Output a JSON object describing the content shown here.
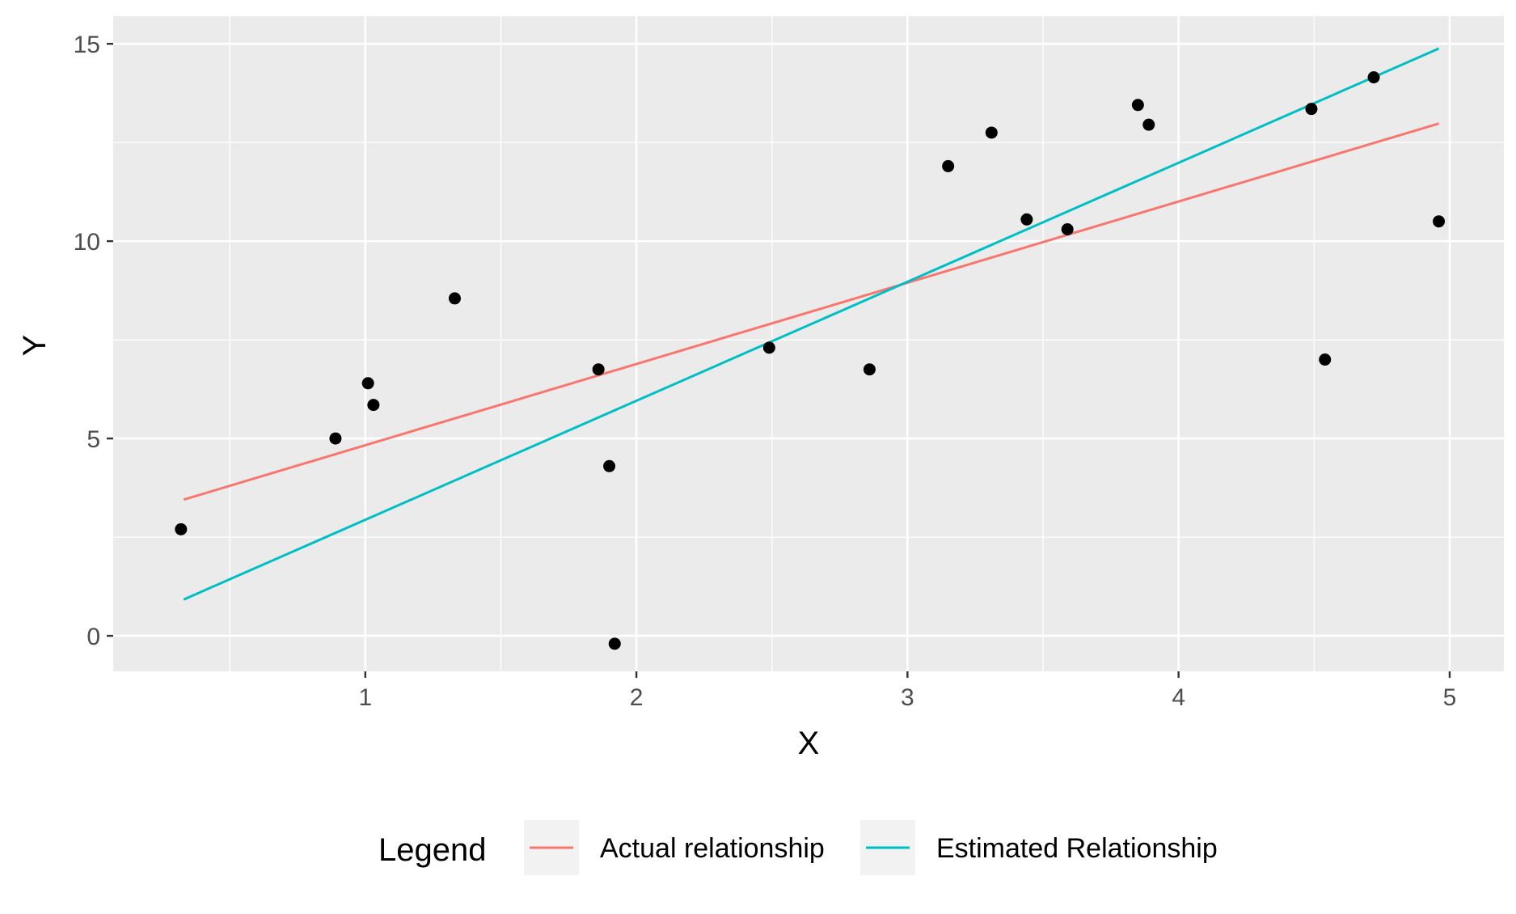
{
  "chart_data": {
    "type": "scatter",
    "title": "",
    "xlabel": "X",
    "ylabel": "Y",
    "xlim": [
      0.07,
      5.2
    ],
    "ylim": [
      -0.9,
      15.7
    ],
    "x_ticks": [
      1,
      2,
      3,
      4,
      5
    ],
    "y_ticks": [
      0,
      5,
      10,
      15
    ],
    "x_tick_labels": [
      "1",
      "2",
      "3",
      "4",
      "5"
    ],
    "y_tick_labels": [
      "0",
      "5",
      "10",
      "15"
    ],
    "grid": true,
    "background_color": "#EBEBEB",
    "grid_color": "#FFFFFF",
    "points": {
      "color": "#000000",
      "x": [
        0.32,
        0.89,
        1.01,
        1.03,
        1.33,
        1.86,
        1.9,
        1.92,
        2.49,
        2.86,
        3.15,
        3.31,
        3.44,
        3.59,
        3.85,
        3.89,
        4.49,
        4.54,
        4.72,
        4.96
      ],
      "y": [
        2.7,
        5.0,
        6.4,
        5.85,
        8.55,
        6.75,
        4.3,
        -0.2,
        7.3,
        6.75,
        11.9,
        12.75,
        10.55,
        10.3,
        13.45,
        12.95,
        13.35,
        7.0,
        14.15,
        10.5
      ]
    },
    "series": [
      {
        "name": "Actual relationship",
        "color": "#F8766D",
        "x": [
          0.33,
          4.96
        ],
        "y": [
          3.45,
          12.98
        ]
      },
      {
        "name": "Estimated Relationship",
        "color": "#00BFC4",
        "x": [
          0.33,
          4.96
        ],
        "y": [
          0.92,
          14.88
        ]
      }
    ],
    "legend": {
      "title": "Legend",
      "position": "bottom"
    }
  }
}
